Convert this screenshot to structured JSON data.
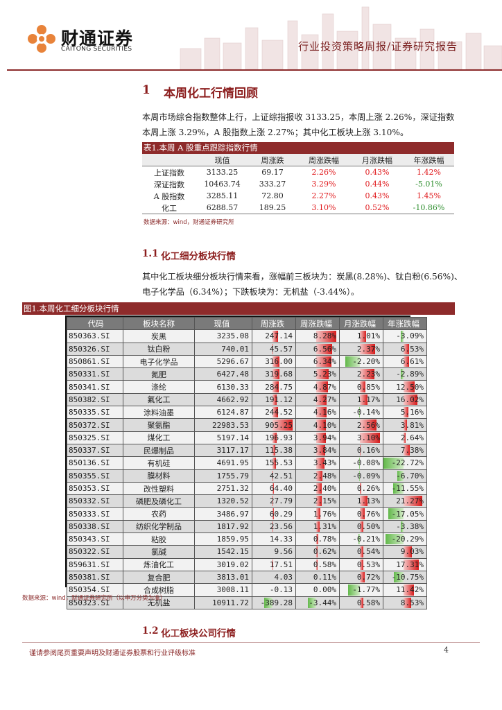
{
  "header": {
    "logo_cn": "财通证券",
    "logo_en": "CAITONG SECURITIES",
    "title": "行业投资策略周报/证券研究报告",
    "accent_color": "#8b2a2a"
  },
  "section1": {
    "number": "1",
    "title": "本周化工行情回顾",
    "para_line1": "本周市场综合指数整体上行，上证综指报收 3133.25，本周上涨 2.26%，深证指数",
    "para_line2": "本周上涨 3.29%，A 股指数上涨 2.27%；其中化工板块上涨 3.10%。"
  },
  "table1": {
    "title": "表1.本周 A 股重点跟踪指数行情",
    "headers": [
      "",
      "现值",
      "周涨跌",
      "周涨跌幅",
      "月涨跌幅",
      "年涨跌幅"
    ],
    "rows": [
      {
        "name": "上证指数",
        "value": "3133.25",
        "week_chg": "69.17",
        "week_pct": "2.26%",
        "month_pct": "0.43%",
        "year_pct": "1.42%"
      },
      {
        "name": "深证指数",
        "value": "10463.74",
        "week_chg": "333.27",
        "week_pct": "3.29%",
        "month_pct": "0.44%",
        "year_pct": "-5.01%"
      },
      {
        "name": "A 股指数",
        "value": "3285.11",
        "week_chg": "72.80",
        "week_pct": "2.27%",
        "month_pct": "0.43%",
        "year_pct": "1.45%"
      },
      {
        "name": "化工",
        "value": "6288.57",
        "week_chg": "189.25",
        "week_pct": "3.10%",
        "month_pct": "0.52%",
        "year_pct": "-10.86%"
      }
    ],
    "source": "数据来源：wind，财通证券研究所"
  },
  "sub1": {
    "number": "1.1",
    "title": "化工细分板块行情",
    "para_line1": "其中化工板块细分板块行情来看，涨幅前三板块为：炭黑(8.28%)、钛白粉(6.56%)、",
    "para_line2": "电子化学品（6.34%）；下跌板块为：无机盐（-3.44%）。"
  },
  "figure1": {
    "title": "图1.本周化工细分板块行情",
    "headers": [
      "代码",
      "板块名称",
      "现值",
      "周涨跌",
      "周涨跌幅",
      "月涨跌幅",
      "年涨跌幅"
    ],
    "rows": [
      {
        "code": "850363.SI",
        "name": "炭黑",
        "value": "3235.08",
        "week_chg": "247.14",
        "week_pct": "8.28%",
        "month_pct": "1.01%",
        "year_pct": "-3.09%"
      },
      {
        "code": "850326.SI",
        "name": "钛白粉",
        "value": "740.01",
        "week_chg": "45.57",
        "week_pct": "6.56%",
        "month_pct": "2.37%",
        "year_pct": "6.53%"
      },
      {
        "code": "850861.SI",
        "name": "电子化学品",
        "value": "5296.67",
        "week_chg": "316.00",
        "week_pct": "6.34%",
        "month_pct": "-2.20%",
        "year_pct": "6.61%"
      },
      {
        "code": "850331.SI",
        "name": "氮肥",
        "value": "6427.48",
        "week_chg": "319.68",
        "week_pct": "5.23%",
        "month_pct": "2.23%",
        "year_pct": "-2.89%"
      },
      {
        "code": "850341.SI",
        "name": "涤纶",
        "value": "6130.33",
        "week_chg": "284.75",
        "week_pct": "4.87%",
        "month_pct": "0.85%",
        "year_pct": "12.50%"
      },
      {
        "code": "850382.SI",
        "name": "氟化工",
        "value": "4662.92",
        "week_chg": "191.12",
        "week_pct": "4.27%",
        "month_pct": "1.17%",
        "year_pct": "16.02%"
      },
      {
        "code": "850335.SI",
        "name": "涂料油墨",
        "value": "6124.87",
        "week_chg": "244.52",
        "week_pct": "4.16%",
        "month_pct": "-0.14%",
        "year_pct": "5.16%"
      },
      {
        "code": "850372.SI",
        "name": "聚氨酯",
        "value": "22983.53",
        "week_chg": "905.25",
        "week_pct": "4.10%",
        "month_pct": "2.56%",
        "year_pct": "3.81%"
      },
      {
        "code": "850325.SI",
        "name": "煤化工",
        "value": "5197.14",
        "week_chg": "196.93",
        "week_pct": "3.94%",
        "month_pct": "3.10%",
        "year_pct": "2.64%"
      },
      {
        "code": "850337.SI",
        "name": "民爆制品",
        "value": "3117.17",
        "week_chg": "115.38",
        "week_pct": "3.84%",
        "month_pct": "0.16%",
        "year_pct": "7.38%"
      },
      {
        "code": "850136.SI",
        "name": "有机硅",
        "value": "4691.95",
        "week_chg": "155.53",
        "week_pct": "3.43%",
        "month_pct": "-0.08%",
        "year_pct": "-22.72%"
      },
      {
        "code": "850355.SI",
        "name": "膜材料",
        "value": "1755.79",
        "week_chg": "42.51",
        "week_pct": "2.48%",
        "month_pct": "-0.09%",
        "year_pct": "-6.70%"
      },
      {
        "code": "850353.SI",
        "name": "改性塑料",
        "value": "2751.32",
        "week_chg": "64.40",
        "week_pct": "2.40%",
        "month_pct": "0.26%",
        "year_pct": "-11.55%"
      },
      {
        "code": "850332.SI",
        "name": "磷肥及磷化工",
        "value": "1320.52",
        "week_chg": "27.79",
        "week_pct": "2.15%",
        "month_pct": "1.13%",
        "year_pct": "21.27%"
      },
      {
        "code": "850333.SI",
        "name": "农药",
        "value": "3486.97",
        "week_chg": "60.29",
        "week_pct": "1.76%",
        "month_pct": "0.76%",
        "year_pct": "-17.05%"
      },
      {
        "code": "850338.SI",
        "name": "纺织化学制品",
        "value": "1817.92",
        "week_chg": "23.56",
        "week_pct": "1.31%",
        "month_pct": "0.50%",
        "year_pct": "-3.38%"
      },
      {
        "code": "850343.SI",
        "name": "粘胶",
        "value": "1859.95",
        "week_chg": "14.33",
        "week_pct": "0.78%",
        "month_pct": "-0.21%",
        "year_pct": "-20.29%"
      },
      {
        "code": "850322.SI",
        "name": "氯碱",
        "value": "1542.15",
        "week_chg": "9.56",
        "week_pct": "0.62%",
        "month_pct": "0.54%",
        "year_pct": "9.03%"
      },
      {
        "code": "859631.SI",
        "name": "炼油化工",
        "value": "3019.02",
        "week_chg": "17.51",
        "week_pct": "0.58%",
        "month_pct": "0.53%",
        "year_pct": "17.31%"
      },
      {
        "code": "850381.SI",
        "name": "复合肥",
        "value": "3813.01",
        "week_chg": "4.03",
        "week_pct": "0.11%",
        "month_pct": "0.72%",
        "year_pct": "-10.75%"
      },
      {
        "code": "850354.SI",
        "name": "合成树脂",
        "value": "3008.11",
        "week_chg": "-0.13",
        "week_pct": "0.00%",
        "month_pct": "-1.77%",
        "year_pct": "11.42%"
      },
      {
        "code": "850323.SI",
        "name": "无机盐",
        "value": "10911.72",
        "week_chg": "-389.28",
        "week_pct": "-3.44%",
        "month_pct": "0.58%",
        "year_pct": "8.53%"
      }
    ],
    "source": "数据来源：wind，财通证券研究所（以申万分类为准）",
    "bar_colors": {
      "positive": "#d71a1a",
      "negative": "#62b84a"
    }
  },
  "sub2": {
    "number": "1.2",
    "title": "化工板块公司行情"
  },
  "footer": {
    "disclaimer": "谨请参阅尾页重要声明及财通证券股票和行业评级标准",
    "page": "4"
  }
}
